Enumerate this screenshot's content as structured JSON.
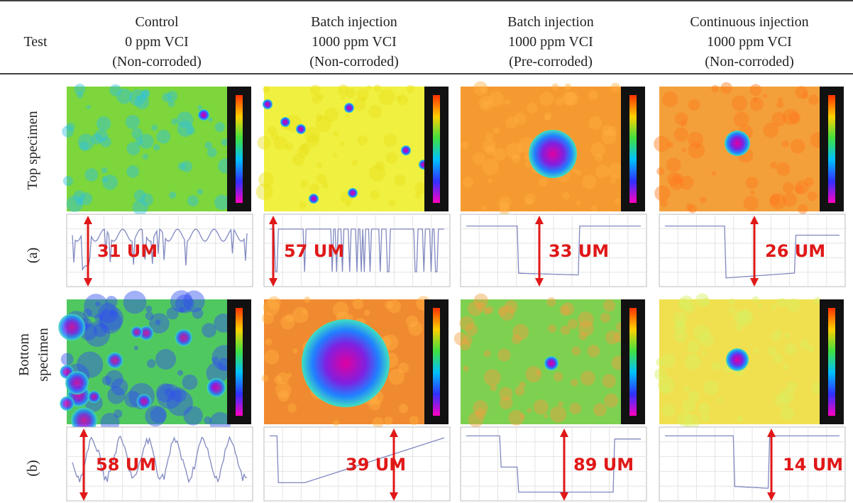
{
  "header": {
    "test": "Test",
    "columns": [
      [
        "Control",
        "0 ppm VCI",
        "(Non-corroded)"
      ],
      [
        "Batch injection",
        "1000 ppm VCI",
        "(Non-corroded)"
      ],
      [
        "Batch injection",
        "1000 ppm VCI",
        "(Pre-corroded)"
      ],
      [
        "Continuous injection",
        "1000 ppm VCI",
        "(Non-corroded)"
      ]
    ]
  },
  "rows": [
    {
      "label": "(a)",
      "name": [
        "Top specimen"
      ],
      "depths": [
        "31 UM",
        "57 UM",
        "33 UM",
        "26 UM"
      ]
    },
    {
      "label": "(b)",
      "name": [
        "Bottom",
        "specimen"
      ],
      "depths": [
        "58 UM",
        "39 UM",
        "89 UM",
        "14 UM"
      ]
    }
  ]
}
